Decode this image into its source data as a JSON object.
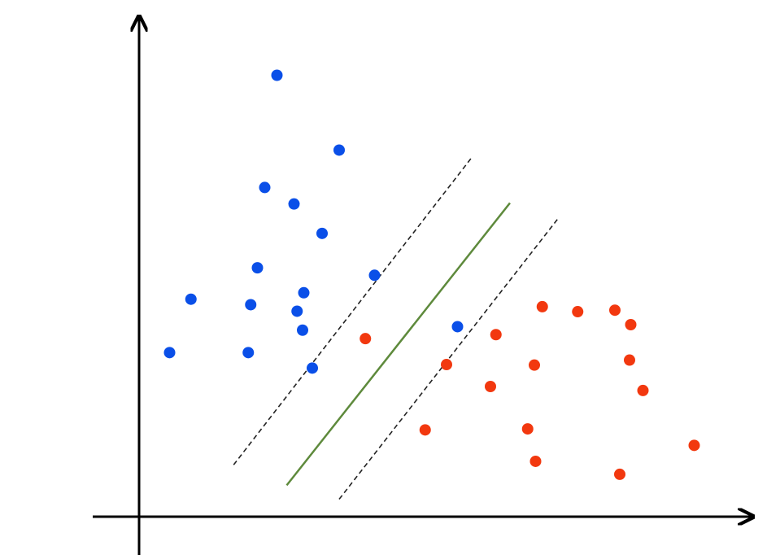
{
  "chart_data": {
    "type": "scatter",
    "title": "",
    "xlabel": "",
    "ylabel": "",
    "grid": false,
    "legend": "none",
    "xlim": [
      0,
      100
    ],
    "ylim": [
      0,
      100
    ],
    "series": [
      {
        "color": "#0a4fe8",
        "points": [
          [
            22.6,
            88.5
          ],
          [
            32.8,
            73.5
          ],
          [
            20.6,
            66.0
          ],
          [
            25.4,
            62.7
          ],
          [
            30.0,
            56.8
          ],
          [
            19.4,
            49.9
          ],
          [
            18.3,
            42.5
          ],
          [
            25.9,
            41.2
          ],
          [
            27.0,
            44.9
          ],
          [
            38.6,
            48.4
          ],
          [
            26.8,
            37.4
          ],
          [
            8.5,
            43.6
          ],
          [
            5.0,
            32.9
          ],
          [
            17.9,
            32.9
          ],
          [
            28.4,
            29.8
          ],
          [
            52.2,
            38.1
          ]
        ]
      },
      {
        "color": "#f2380f",
        "points": [
          [
            37.1,
            35.7
          ],
          [
            50.4,
            30.5
          ],
          [
            58.5,
            36.5
          ],
          [
            71.9,
            41.1
          ],
          [
            66.1,
            42.1
          ],
          [
            78.0,
            41.4
          ],
          [
            80.6,
            38.5
          ],
          [
            64.8,
            30.4
          ],
          [
            80.4,
            31.4
          ],
          [
            57.6,
            26.1
          ],
          [
            82.6,
            25.3
          ],
          [
            46.9,
            17.4
          ],
          [
            63.7,
            17.6
          ],
          [
            65.0,
            11.1
          ],
          [
            78.8,
            8.5
          ],
          [
            91.0,
            14.3
          ]
        ]
      }
    ],
    "lines": [
      {
        "style": "solid",
        "color": "#5e8a3c",
        "from": [
          24.2,
          6.3
        ],
        "to": [
          60.8,
          62.9
        ]
      },
      {
        "style": "dashed",
        "color": "#222222",
        "from": [
          15.5,
          10.4
        ],
        "to": [
          54.4,
          71.8
        ]
      },
      {
        "style": "dashed",
        "color": "#222222",
        "from": [
          32.8,
          3.5
        ],
        "to": [
          68.7,
          59.8
        ]
      }
    ]
  }
}
